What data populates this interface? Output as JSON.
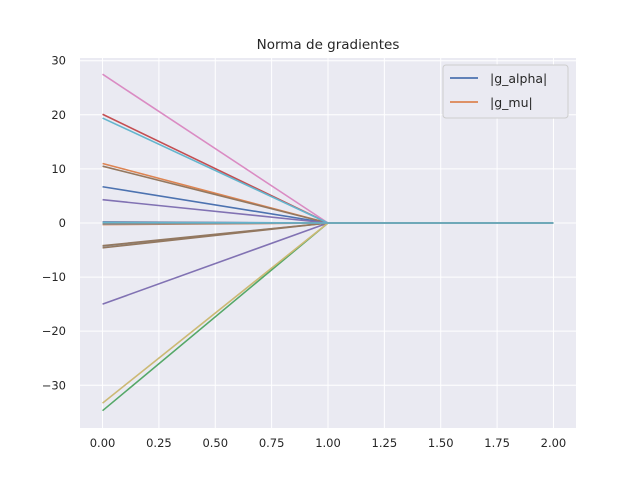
{
  "chart_data": {
    "type": "line",
    "title": "Norma de gradientes",
    "xlabel": "",
    "ylabel": "",
    "xlim": [
      -0.1,
      2.1
    ],
    "ylim": [
      -37.9,
      30.5
    ],
    "xticks": [
      0.0,
      0.25,
      0.5,
      0.75,
      1.0,
      1.25,
      1.5,
      1.75,
      2.0
    ],
    "xtick_labels": [
      "0.00",
      "0.25",
      "0.50",
      "0.75",
      "1.00",
      "1.25",
      "1.50",
      "1.75",
      "2.00"
    ],
    "yticks": [
      -30,
      -20,
      -10,
      0,
      10,
      20,
      30
    ],
    "ytick_labels": [
      "−30",
      "−20",
      "−10",
      "0",
      "10",
      "20",
      "30"
    ],
    "grid": true,
    "legend": {
      "placement": "upper right",
      "entries": [
        {
          "label": "|g_alpha|",
          "color": "#4c72b0"
        },
        {
          "label": "|g_mu|",
          "color": "#dd8452"
        }
      ]
    },
    "x": [
      0,
      1,
      2
    ],
    "series": [
      {
        "color": "#4c72b0",
        "values": [
          6.7,
          0,
          0
        ]
      },
      {
        "color": "#dd8452",
        "values": [
          11.0,
          0,
          0
        ]
      },
      {
        "color": "#55a868",
        "values": [
          -34.7,
          0,
          0
        ]
      },
      {
        "color": "#c44e52",
        "values": [
          20.1,
          0,
          0
        ]
      },
      {
        "color": "#8172b3",
        "values": [
          -15.0,
          0,
          0
        ]
      },
      {
        "color": "#937860",
        "values": [
          10.5,
          0,
          0
        ]
      },
      {
        "color": "#da8bc3",
        "values": [
          27.5,
          0,
          0
        ]
      },
      {
        "color": "#8c8c8c",
        "values": [
          -4.3,
          0,
          0
        ]
      },
      {
        "color": "#ccb974",
        "values": [
          -33.3,
          0,
          0
        ]
      },
      {
        "color": "#64b5cd",
        "values": [
          19.4,
          0,
          0
        ]
      },
      {
        "color": "#4c72b0",
        "values": [
          0.2,
          0,
          0
        ]
      },
      {
        "color": "#dd8452",
        "values": [
          -0.3,
          0,
          0
        ]
      },
      {
        "color": "#55a868",
        "values": [
          0.0,
          0,
          0
        ]
      },
      {
        "color": "#c44e52",
        "values": [
          0.1,
          0,
          0
        ]
      },
      {
        "color": "#8172b3",
        "values": [
          4.3,
          0,
          0
        ]
      },
      {
        "color": "#937860",
        "values": [
          -4.6,
          0,
          0
        ]
      },
      {
        "color": "#937860",
        "values": [
          -4.2,
          0,
          0
        ]
      },
      {
        "color": "#8c8c8c",
        "values": [
          -0.2,
          0,
          0
        ]
      },
      {
        "color": "#64b5cd",
        "values": [
          0.1,
          0,
          0
        ]
      }
    ],
    "background_color": "#eaeaf2",
    "grid_color": "#ffffff"
  }
}
